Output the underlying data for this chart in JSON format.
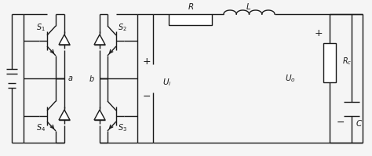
{
  "bg_color": "#f5f5f5",
  "line_color": "#1a1a1a",
  "fig_width": 4.74,
  "fig_height": 1.99,
  "dpi": 100
}
